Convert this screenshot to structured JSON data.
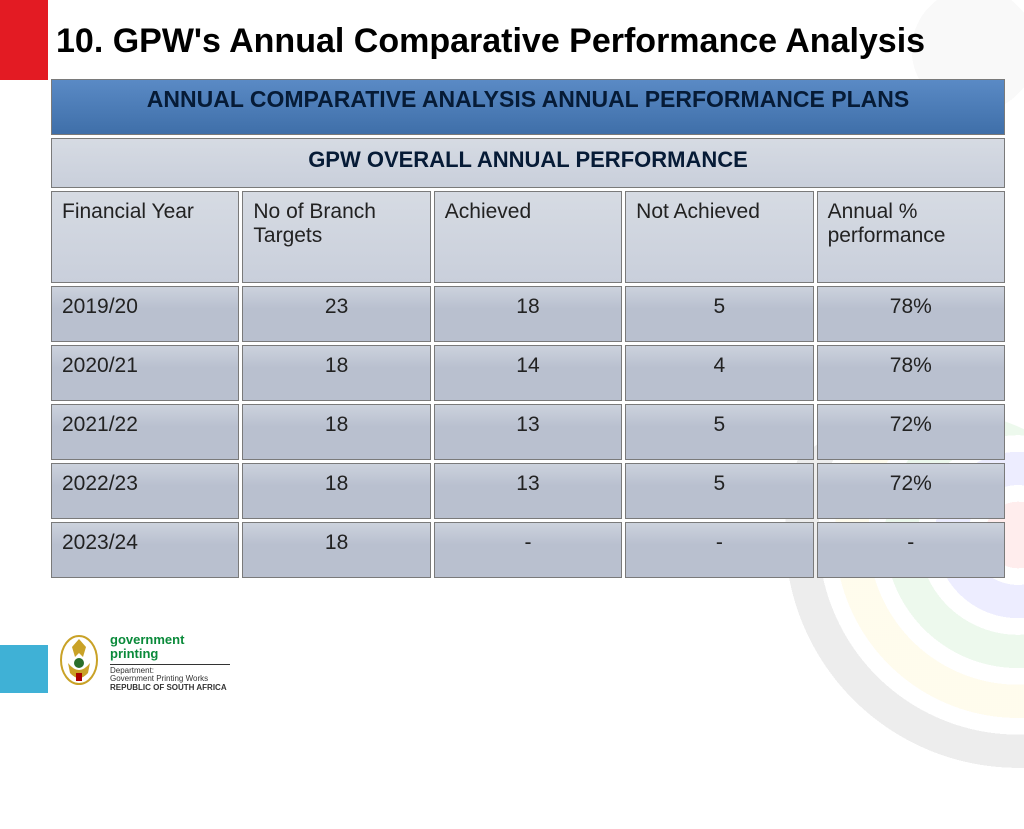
{
  "page": {
    "title": "10. GPW's Annual Comparative Performance Analysis"
  },
  "table": {
    "banner": "ANNUAL COMPARATIVE ANALYSIS ANNUAL PERFORMANCE PLANS",
    "subtitle": "GPW OVERALL ANNUAL PERFORMANCE",
    "columns": [
      "Financial Year",
      "No of Branch Targets",
      "Achieved",
      "Not Achieved",
      "Annual % performance"
    ],
    "rows": [
      {
        "year": "2019/20",
        "targets": "23",
        "achieved": "18",
        "not_achieved": "5",
        "pct": "78%"
      },
      {
        "year": "2020/21",
        "targets": "18",
        "achieved": "14",
        "not_achieved": "4",
        "pct": "78%"
      },
      {
        "year": "2021/22",
        "targets": "18",
        "achieved": "13",
        "not_achieved": "5",
        "pct": "72%"
      },
      {
        "year": "2022/23",
        "targets": "18",
        "achieved": "13",
        "not_achieved": "5",
        "pct": "72%"
      },
      {
        "year": "2023/24",
        "targets": "18",
        "achieved": "-",
        "not_achieved": "-",
        "pct": "-"
      }
    ],
    "column_widths_pct": [
      20,
      20,
      20,
      20,
      20
    ],
    "banner_bg": "#4a7ab5",
    "cell_bg": "#b9c0cf",
    "text_color": "#222",
    "banner_text_color": "#061b36"
  },
  "footer": {
    "brand_line1": "government",
    "brand_line2": "printing",
    "dept_label": "Department:",
    "dept_name": "Government Printing Works",
    "country": "REPUBLIC OF SOUTH AFRICA",
    "accent_blue": "#3fb1d6",
    "brand_green": "#0a8a3a"
  },
  "accent_red": "#e31b23"
}
